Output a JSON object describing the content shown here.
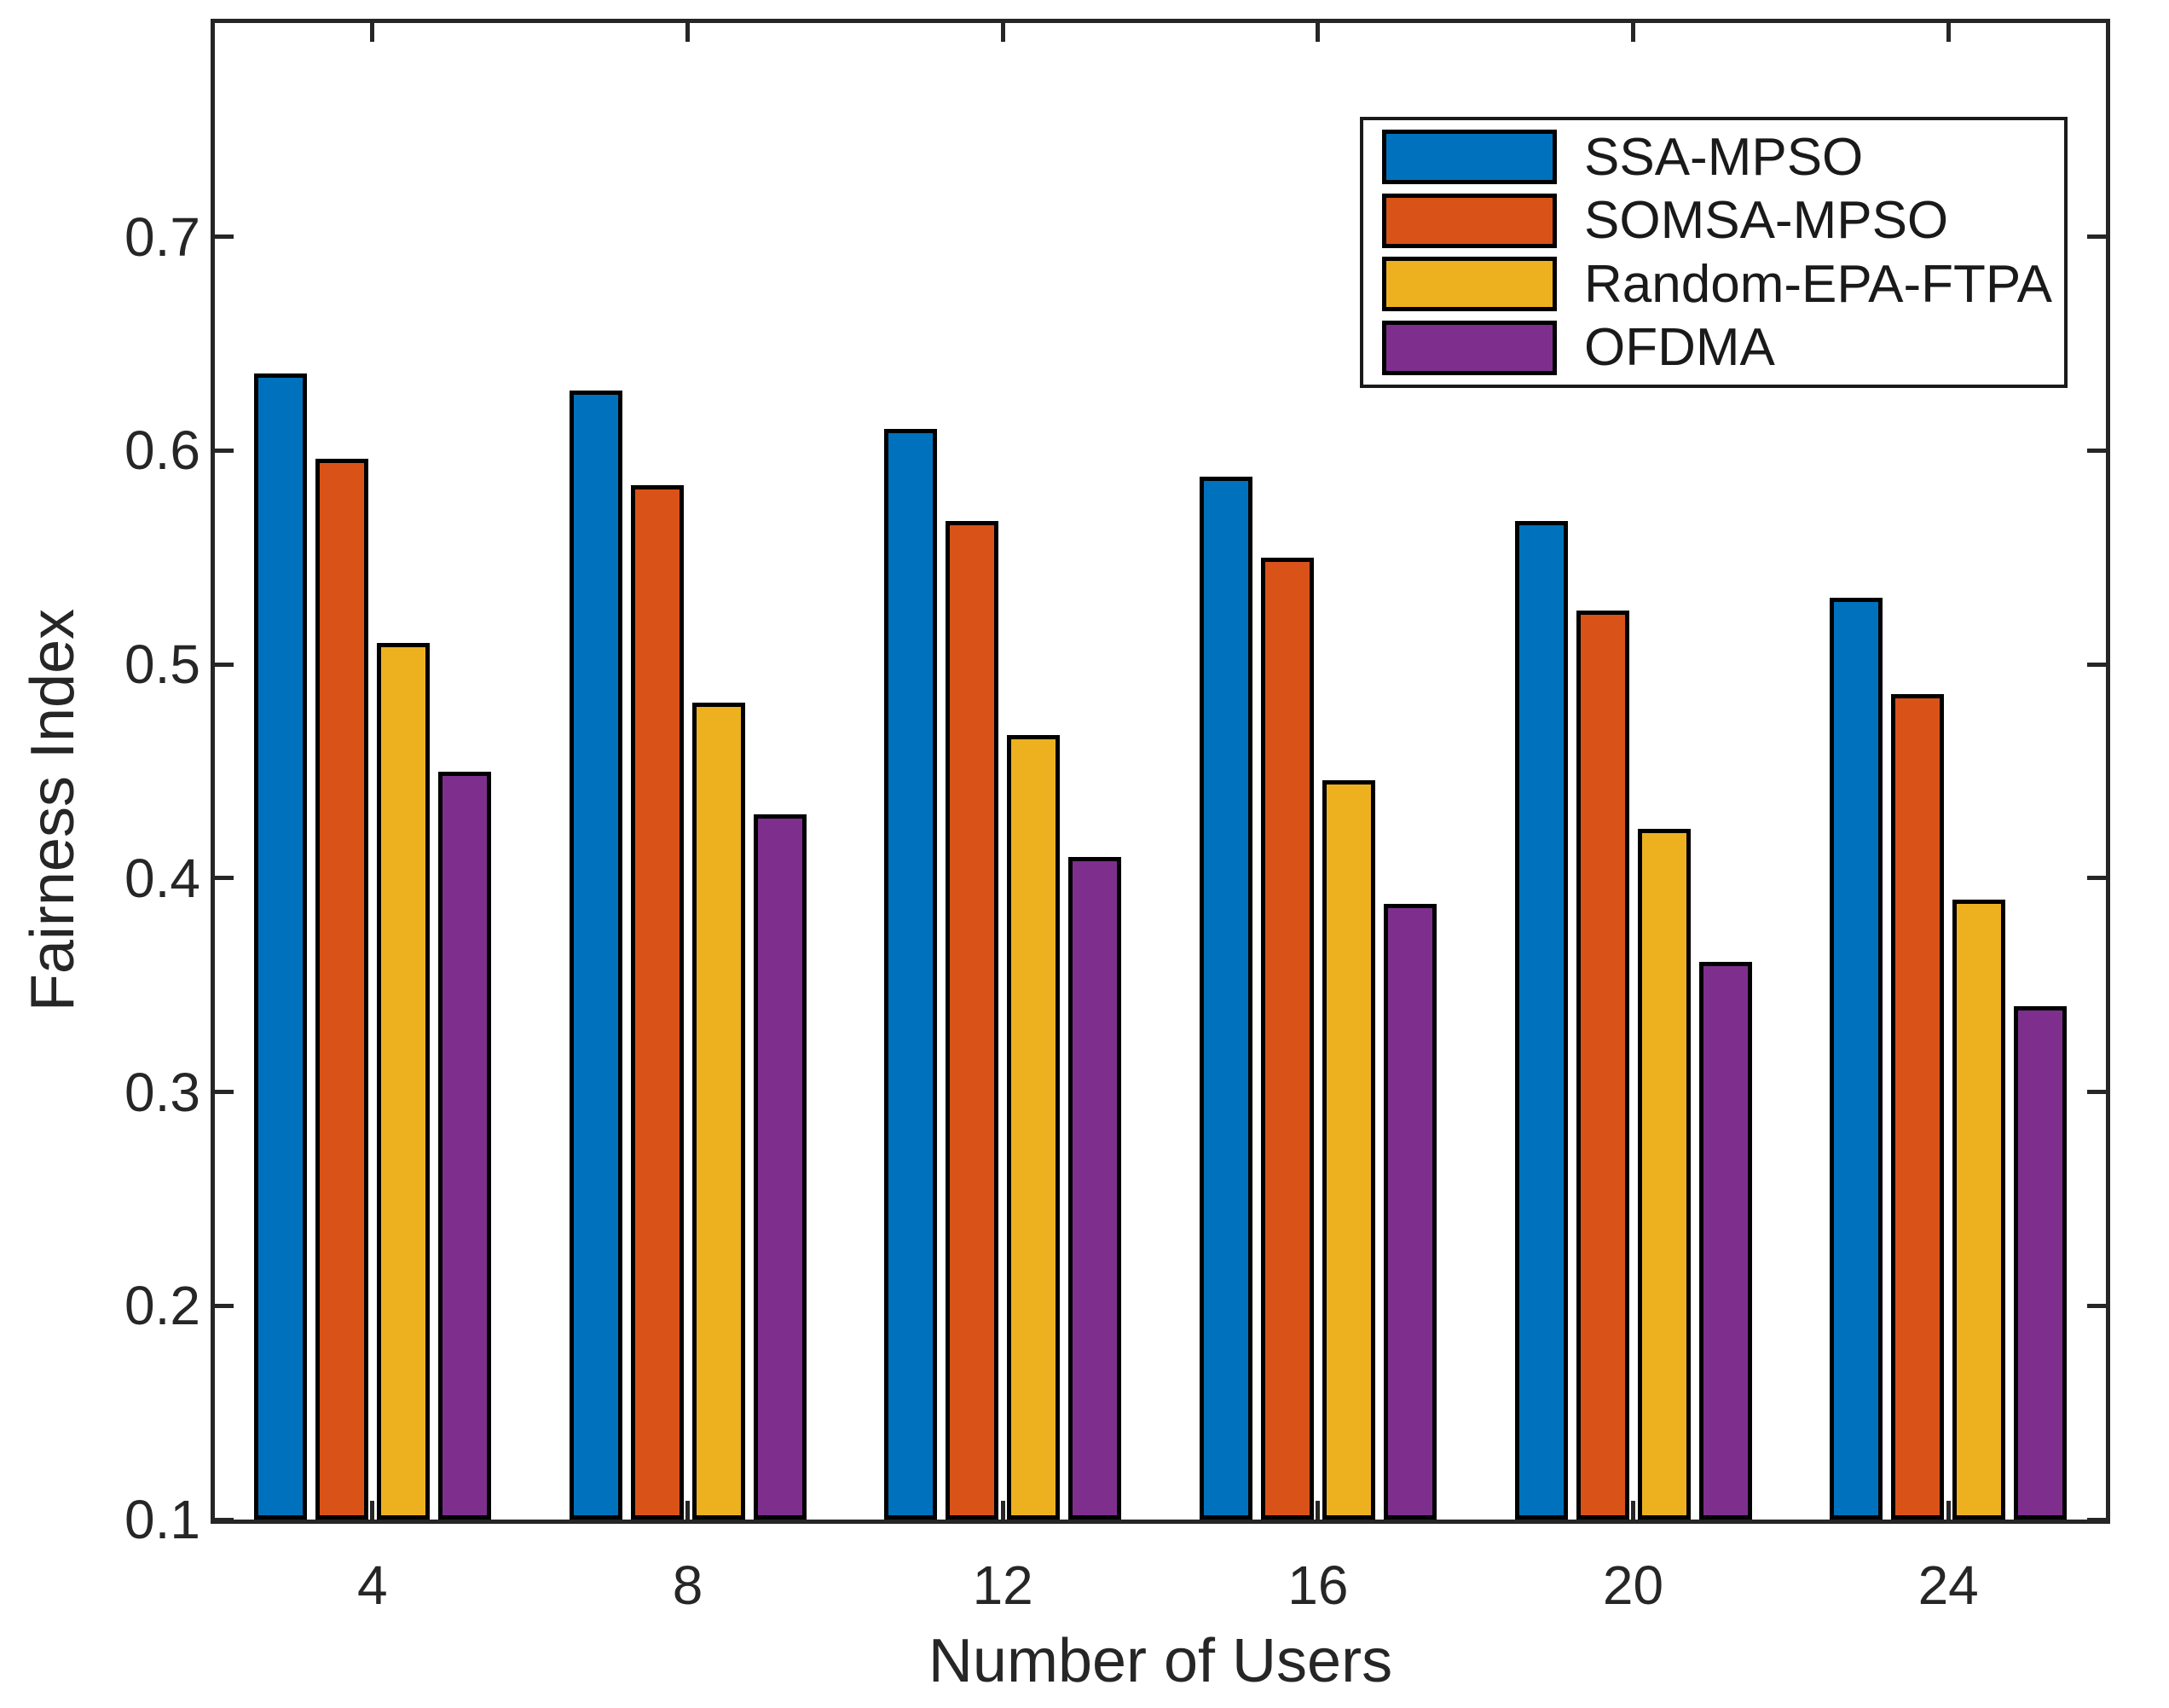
{
  "figure": {
    "background_color": "#ffffff",
    "axis_color": "#262626",
    "bar_edge_color": "#000000"
  },
  "chart_data": {
    "type": "bar",
    "title": "",
    "xlabel": "Number of Users",
    "ylabel": "Fairness Index",
    "categories": [
      "4",
      "8",
      "12",
      "16",
      "20",
      "24"
    ],
    "series": [
      {
        "name": "SSA-MPSO",
        "color": "#0072BD",
        "values": [
          0.636,
          0.628,
          0.61,
          0.588,
          0.567,
          0.531
        ]
      },
      {
        "name": "SOMSA-MPSO",
        "color": "#D95319",
        "values": [
          0.596,
          0.584,
          0.567,
          0.55,
          0.525,
          0.486
        ]
      },
      {
        "name": "Random-EPA-FTPA",
        "color": "#EDB120",
        "values": [
          0.51,
          0.482,
          0.467,
          0.446,
          0.423,
          0.39
        ]
      },
      {
        "name": "OFDMA",
        "color": "#7E2F8E",
        "values": [
          0.45,
          0.43,
          0.41,
          0.388,
          0.361,
          0.34
        ]
      }
    ],
    "ylim": [
      0.1,
      0.8
    ],
    "yticks": [
      0.1,
      0.2,
      0.3,
      0.4,
      0.5,
      0.6,
      0.7
    ],
    "grid": false,
    "legend_position": "top-right"
  }
}
